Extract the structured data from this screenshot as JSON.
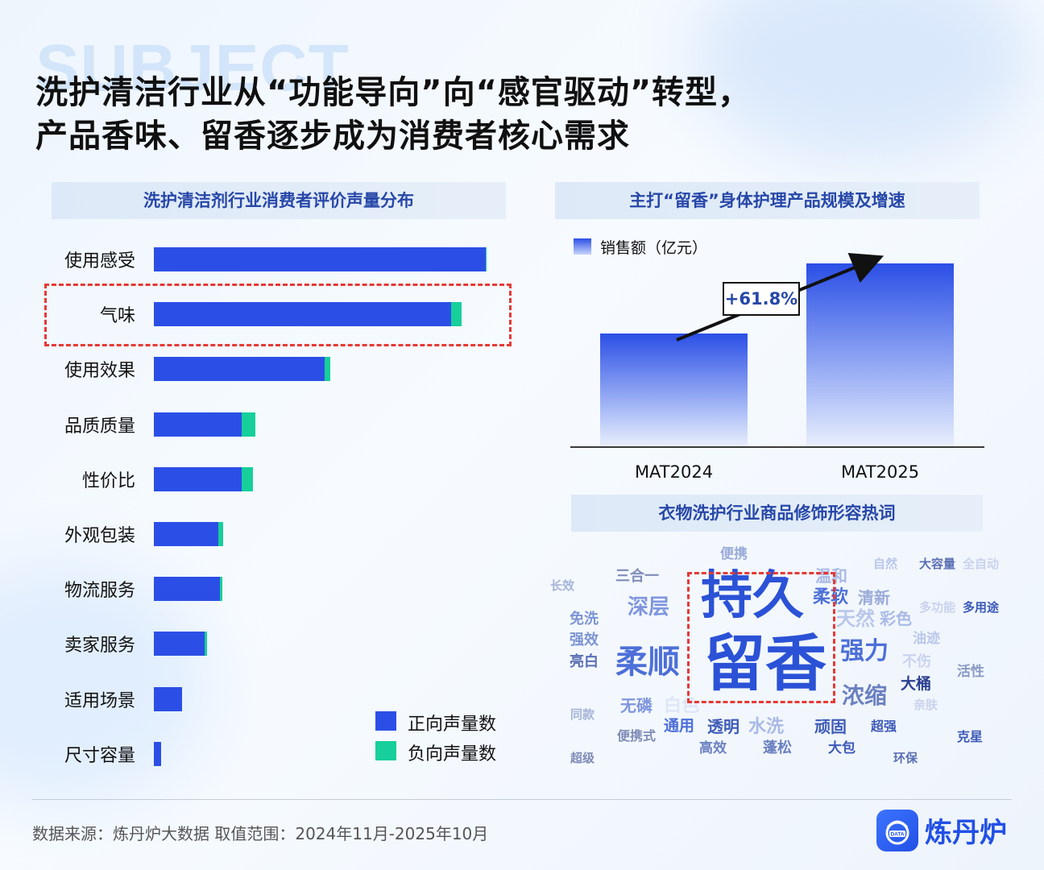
{
  "watermark": "SUBJECT",
  "title_lines": [
    "洗护清洁行业从“功能导向”向“感官驱动”转型，",
    "产品香味、留香逐步成为消费者核心需求"
  ],
  "colors": {
    "positive": "#2b4fe6",
    "negative": "#16cf9a",
    "highlight": "#e53935",
    "panel_title": "#2747a8"
  },
  "chart_data": [
    {
      "type": "bar",
      "orientation": "horizontal",
      "stacked": true,
      "title": "洗护清洁剂行业消费者评价声量分布",
      "categories": [
        "使用感受",
        "气味",
        "使用效果",
        "品质质量",
        "性价比",
        "外观包装",
        "物流服务",
        "卖家服务",
        "适用场景",
        "尺寸容量"
      ],
      "series": [
        {
          "name": "正向声量数",
          "values": [
            100,
            89.5,
            51.5,
            26.5,
            26.5,
            19.3,
            20.0,
            15.3,
            8.5,
            2.2
          ]
        },
        {
          "name": "负向声量数",
          "values": [
            0.3,
            3.3,
            1.7,
            4.1,
            3.4,
            1.6,
            0.7,
            0.6,
            0.0,
            0.0
          ]
        }
      ],
      "highlight": "气味",
      "legend": "bottom-right"
    },
    {
      "type": "bar",
      "title": "主打“留香”身体护理产品规模及增速",
      "categories": [
        "MAT2024",
        "MAT2025"
      ],
      "series": [
        {
          "name": "销售额（亿元）",
          "values": [
            100,
            161.8
          ]
        }
      ],
      "annotation": "+61.8%",
      "legend": "top-left"
    }
  ],
  "word_cloud": {
    "title": "衣物洗护行业商品修饰形容热词",
    "words": [
      {
        "text": "持久",
        "size": 64,
        "color": "#2b52d6"
      },
      {
        "text": "留香",
        "size": 76,
        "color": "#2b52d6"
      },
      {
        "text": "柔顺",
        "size": 40,
        "color": "#4d6fd8"
      },
      {
        "text": "深层",
        "size": 26,
        "color": "#7f96de"
      },
      {
        "text": "三合一",
        "size": 18,
        "color": "#7f8cb8"
      },
      {
        "text": "便携",
        "size": 17,
        "color": "#9aabd9"
      },
      {
        "text": "长效",
        "size": 15,
        "color": "#a6b4d9"
      },
      {
        "text": "免洗",
        "size": 18,
        "color": "#7c94d3"
      },
      {
        "text": "强效",
        "size": 18,
        "color": "#7c94d3"
      },
      {
        "text": "亮白",
        "size": 18,
        "color": "#5a6fb4"
      },
      {
        "text": "无磷",
        "size": 20,
        "color": "#7f96de"
      },
      {
        "text": "白色",
        "size": 22,
        "color": "#dfe6f6"
      },
      {
        "text": "同款",
        "size": 15,
        "color": "#a6b4d9"
      },
      {
        "text": "便携式",
        "size": 16,
        "color": "#7f8cb8"
      },
      {
        "text": "超级",
        "size": 15,
        "color": "#7f8cb8"
      },
      {
        "text": "通用",
        "size": 19,
        "color": "#4d6fd8"
      },
      {
        "text": "透明",
        "size": 20,
        "color": "#3d5ab8"
      },
      {
        "text": "水洗",
        "size": 22,
        "color": "#a9b9e6"
      },
      {
        "text": "高效",
        "size": 17,
        "color": "#6b80c0"
      },
      {
        "text": "蓬松",
        "size": 18,
        "color": "#6b80c0"
      },
      {
        "text": "顽固",
        "size": 20,
        "color": "#3d5ab8"
      },
      {
        "text": "大包",
        "size": 17,
        "color": "#3d5ab8"
      },
      {
        "text": "温和",
        "size": 20,
        "color": "#a9b9e6"
      },
      {
        "text": "柔软",
        "size": 22,
        "color": "#4d6fd8"
      },
      {
        "text": "清新",
        "size": 20,
        "color": "#9aabd9"
      },
      {
        "text": "天然",
        "size": 24,
        "color": "#b9c7ea"
      },
      {
        "text": "彩色",
        "size": 20,
        "color": "#a9b9e6"
      },
      {
        "text": "强力",
        "size": 30,
        "color": "#4d6fd8"
      },
      {
        "text": "浓缩",
        "size": 28,
        "color": "#6b80c0"
      },
      {
        "text": "超强",
        "size": 16,
        "color": "#3d5ab8"
      },
      {
        "text": "自然",
        "size": 15,
        "color": "#b9c7ea"
      },
      {
        "text": "大容量",
        "size": 15,
        "color": "#5a6fb4"
      },
      {
        "text": "全自动",
        "size": 15,
        "color": "#c9d3ee"
      },
      {
        "text": "多功能",
        "size": 15,
        "color": "#c9d3ee"
      },
      {
        "text": "多用途",
        "size": 15,
        "color": "#3d5ab8"
      },
      {
        "text": "油迹",
        "size": 17,
        "color": "#b9c7ea"
      },
      {
        "text": "不伤",
        "size": 18,
        "color": "#c9d3ee"
      },
      {
        "text": "活性",
        "size": 17,
        "color": "#8a9ac4"
      },
      {
        "text": "大桶",
        "size": 19,
        "color": "#2b3f8f"
      },
      {
        "text": "亲肤",
        "size": 15,
        "color": "#c9d3ee"
      },
      {
        "text": "克星",
        "size": 16,
        "color": "#3d5ab8"
      },
      {
        "text": "环保",
        "size": 15,
        "color": "#5a6fb4"
      }
    ]
  },
  "footer": {
    "source": "数据来源：炼丹炉大数据    取值范围：2024年11月-2025年10月",
    "logo_text": "炼丹炉",
    "logo_badge": "DATA",
    "logo_icon": "cauldron-data-icon"
  }
}
